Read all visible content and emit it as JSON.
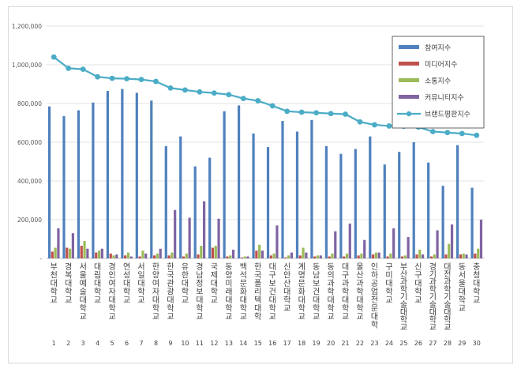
{
  "chart_data": {
    "type": "bar",
    "title": "",
    "xlabel": "",
    "ylabel": "",
    "ylim": [
      0,
      1200000
    ],
    "y_ticks": [
      "-",
      "200,000",
      "400,000",
      "600,000",
      "800,000",
      "1,000,000",
      "1,200,000"
    ],
    "legend_position": "top-right",
    "categories": [
      "부천대학교",
      "경복대학교",
      "서울예술대학교",
      "대림대학교",
      "경인여자대학교",
      "연성대학교",
      "서일대학교",
      "한양여자대학교",
      "한국관광대학교",
      "유한대학교",
      "경남정보대학교",
      "국제대학교",
      "동양미래대학교",
      "백석문화대학교",
      "한국폴리텍대학",
      "대구보건대학교",
      "신안산대학교",
      "계명문화대학교",
      "동남보건대학교",
      "동의과학대학교",
      "대구과학대학교",
      "울산과학대학교",
      "인하공업전문대학",
      "구미대학교",
      "부산과학기술대학교",
      "신구대학교",
      "경기과학기술대학교",
      "대전과학기술대학교",
      "동서울대학교",
      "충청대학교"
    ],
    "ranks": [
      "1",
      "2",
      "3",
      "4",
      "5",
      "6",
      "7",
      "8",
      "9",
      "10",
      "11",
      "12",
      "13",
      "14",
      "15",
      "16",
      "17",
      "18",
      "19",
      "20",
      "21",
      "22",
      "23",
      "24",
      "25",
      "26",
      "27",
      "28",
      "29",
      "30"
    ],
    "series": [
      {
        "name": "참여지수",
        "color": "#4f81bd",
        "values": [
          785000,
          735000,
          765000,
          805000,
          865000,
          875000,
          855000,
          815000,
          580000,
          630000,
          475000,
          520000,
          760000,
          790000,
          645000,
          575000,
          710000,
          655000,
          715000,
          580000,
          540000,
          565000,
          630000,
          485000,
          550000,
          600000,
          495000,
          375000,
          585000,
          365000
        ]
      },
      {
        "name": "미디어지수",
        "color": "#c0504d",
        "values": [
          35000,
          55000,
          65000,
          30000,
          25000,
          15000,
          10000,
          15000,
          15000,
          10000,
          20000,
          55000,
          10000,
          5000,
          40000,
          15000,
          5000,
          15000,
          10000,
          10000,
          10000,
          15000,
          20000,
          10000,
          10000,
          20000,
          10000,
          20000,
          20000,
          25000
        ]
      },
      {
        "name": "소통지수",
        "color": "#9bbb59",
        "values": [
          55000,
          50000,
          90000,
          40000,
          15000,
          30000,
          40000,
          25000,
          30000,
          25000,
          65000,
          65000,
          15000,
          10000,
          70000,
          25000,
          15000,
          55000,
          15000,
          25000,
          25000,
          25000,
          30000,
          25000,
          15000,
          45000,
          20000,
          75000,
          25000,
          50000
        ]
      },
      {
        "name": "커뮤니티지수",
        "color": "#8064a2",
        "values": [
          155000,
          130000,
          50000,
          50000,
          20000,
          10000,
          25000,
          50000,
          250000,
          210000,
          295000,
          205000,
          45000,
          10000,
          40000,
          170000,
          30000,
          30000,
          15000,
          140000,
          180000,
          95000,
          30000,
          155000,
          110000,
          20000,
          145000,
          175000,
          20000,
          200000
        ]
      },
      {
        "name": "브랜드평판지수",
        "color": "#4bacc6",
        "values": [
          1040000,
          982000,
          977000,
          938000,
          930000,
          928000,
          924000,
          914000,
          880000,
          870000,
          860000,
          854000,
          846000,
          826000,
          814000,
          788000,
          760000,
          755000,
          752000,
          748000,
          745000,
          705000,
          690000,
          684000,
          683000,
          678000,
          655000,
          650000,
          645000,
          636000
        ]
      }
    ]
  }
}
